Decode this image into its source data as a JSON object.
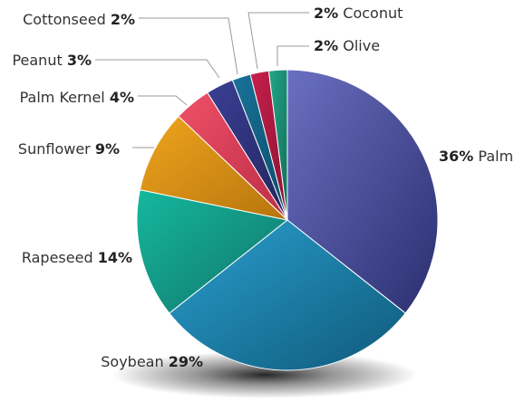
{
  "chart_data": {
    "type": "pie",
    "title": "",
    "slices": [
      {
        "label": "Palm",
        "value": 36,
        "value_text": "36%",
        "color_start": "#6a6fc0",
        "color_end": "#2b2f70"
      },
      {
        "label": "Soybean",
        "value": 29,
        "value_text": "29%",
        "color_start": "#2a9fcf",
        "color_end": "#0f5a7a"
      },
      {
        "label": "Rapeseed",
        "value": 14,
        "value_text": "14%",
        "color_start": "#14b89d",
        "color_end": "#12736a"
      },
      {
        "label": "Sunflower",
        "value": 9,
        "value_text": "9%",
        "color_start": "#f0a51e",
        "color_end": "#b5740d"
      },
      {
        "label": "Palm Kernel",
        "value": 4,
        "value_text": "4%",
        "color_start": "#ef5068",
        "color_end": "#bb2c45"
      },
      {
        "label": "Peanut",
        "value": 3,
        "value_text": "3%",
        "color_start": "#3b3f95",
        "color_end": "#22255c"
      },
      {
        "label": "Cottonseed",
        "value": 2,
        "value_text": "2%",
        "color_start": "#19739a",
        "color_end": "#0c4c69"
      },
      {
        "label": "Coconut",
        "value": 2,
        "value_text": "2%",
        "color_start": "#c8204a",
        "color_end": "#8a1235"
      },
      {
        "label": "Olive",
        "value": 2,
        "value_text": "2%",
        "color_start": "#22a888",
        "color_end": "#146b5a"
      }
    ]
  }
}
